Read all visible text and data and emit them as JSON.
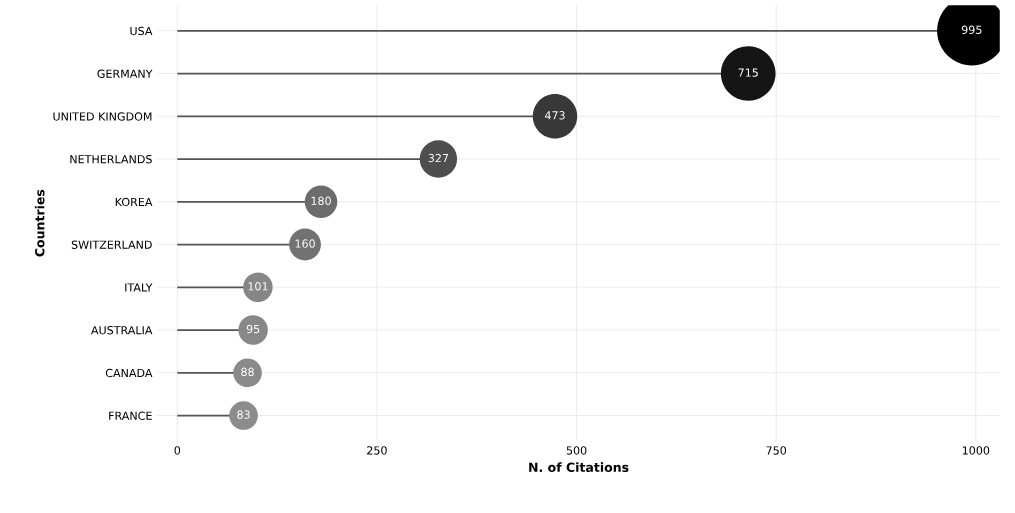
{
  "chart_data": {
    "type": "lollipop",
    "orientation": "horizontal",
    "xlabel": "N. of Citations",
    "ylabel": "Countries",
    "categories": [
      "USA",
      "GERMANY",
      "UNITED KINGDOM",
      "NETHERLANDS",
      "KOREA",
      "SWITZERLAND",
      "ITALY",
      "AUSTRALIA",
      "CANADA",
      "FRANCE"
    ],
    "values": [
      995,
      715,
      473,
      327,
      180,
      160,
      101,
      95,
      88,
      83
    ],
    "colors": [
      "#000000",
      "#151515",
      "#383838",
      "#4e4e4e",
      "#6c6c6c",
      "#727272",
      "#868686",
      "#888888",
      "#8a8a8a",
      "#8c8c8c"
    ],
    "sizes": [
      1,
      0.62,
      0.41,
      0.29,
      0.22,
      0.21,
      0.18,
      0.18,
      0.17,
      0.17
    ],
    "xlim": [
      -25,
      1030
    ],
    "xticks": [
      0,
      250,
      500,
      750,
      1000
    ],
    "grid": true,
    "data_labels": true
  }
}
